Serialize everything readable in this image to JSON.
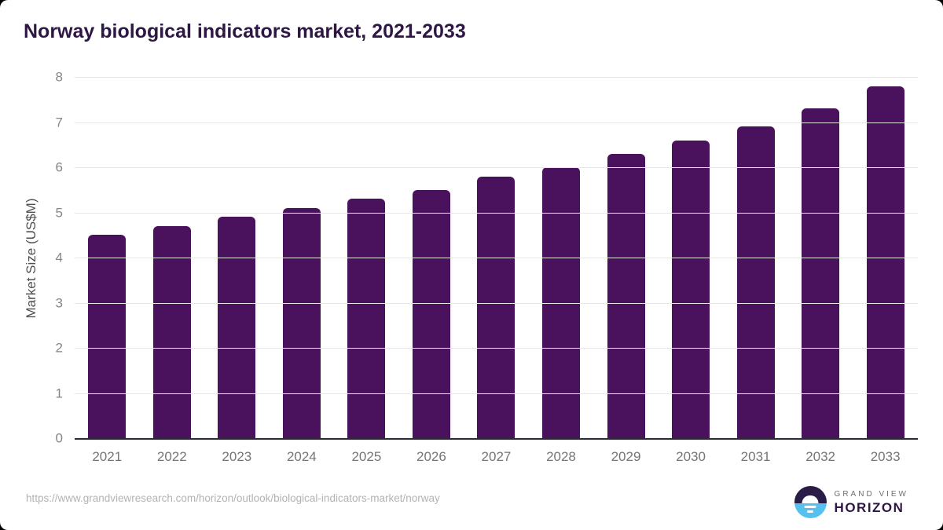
{
  "title": "Norway biological indicators market, 2021-2033",
  "chart_data": {
    "type": "bar",
    "categories": [
      "2021",
      "2022",
      "2023",
      "2024",
      "2025",
      "2026",
      "2027",
      "2028",
      "2029",
      "2030",
      "2031",
      "2032",
      "2033"
    ],
    "values": [
      4.5,
      4.7,
      4.9,
      5.1,
      5.3,
      5.5,
      5.8,
      6.0,
      6.3,
      6.6,
      6.9,
      7.3,
      7.8
    ],
    "title": "Norway biological indicators market, 2021-2033",
    "xlabel": "",
    "ylabel": "Market Size (US$M)",
    "ylim": [
      0,
      8
    ],
    "yticks": [
      0,
      1,
      2,
      3,
      4,
      5,
      6,
      7,
      8
    ],
    "grid": true,
    "legend": "none",
    "bar_color": "#4a115c"
  },
  "colors": {
    "title": "#2e1745",
    "bar": "#4a115c",
    "gridline": "#e7e7e7",
    "axis_line": "#2b2b33",
    "tick_label": "#757575",
    "logo_dark": "#2b1b47",
    "logo_blue": "#56c1ef"
  },
  "footer": {
    "source_url": "https://www.grandviewresearch.com/horizon/outlook/biological-indicators-market/norway",
    "logo": {
      "line1": "GRAND VIEW",
      "line2": "HORIZON"
    }
  }
}
